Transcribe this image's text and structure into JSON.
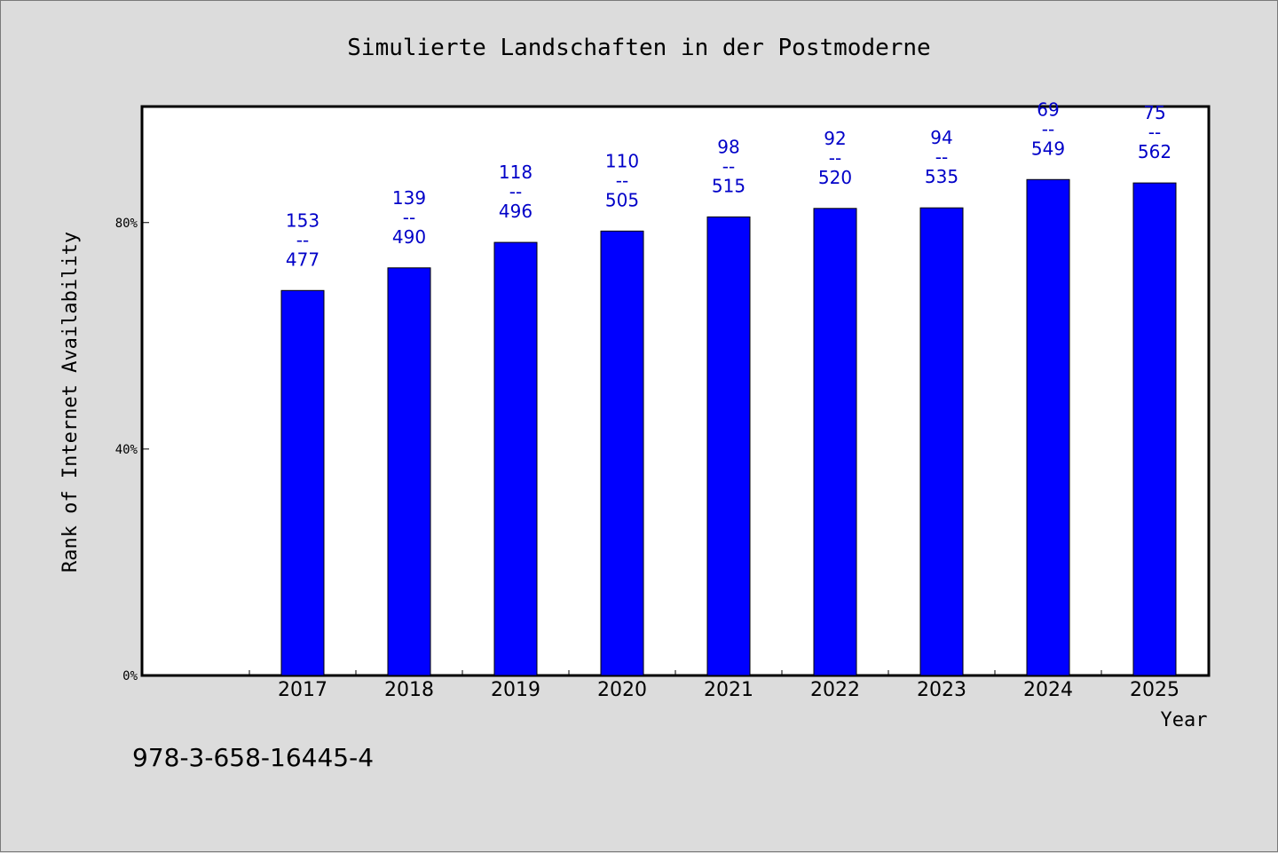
{
  "chart_data": {
    "type": "bar",
    "title": "Simulierte Landschaften in der Postmoderne",
    "xlabel": "Year",
    "ylabel": "Rank of Internet Availability",
    "categories": [
      "2017",
      "2018",
      "2019",
      "2020",
      "2021",
      "2022",
      "2023",
      "2024",
      "2025"
    ],
    "values": [
      68,
      72,
      76.5,
      78.5,
      81,
      82.5,
      82.6,
      87.6,
      87
    ],
    "value_unit": "%",
    "data_labels": [
      {
        "top": "153",
        "separator": "--",
        "bottom": "477"
      },
      {
        "top": "139",
        "separator": "--",
        "bottom": "490"
      },
      {
        "top": "118",
        "separator": "--",
        "bottom": "496"
      },
      {
        "top": "110",
        "separator": "--",
        "bottom": "505"
      },
      {
        "top": "98",
        "separator": "--",
        "bottom": "515"
      },
      {
        "top": "92",
        "separator": "--",
        "bottom": "520"
      },
      {
        "top": "94",
        "separator": "--",
        "bottom": "535"
      },
      {
        "top": "69",
        "separator": "--",
        "bottom": "549"
      },
      {
        "top": "75",
        "separator": "--",
        "bottom": "562"
      }
    ],
    "yticks": [
      0,
      40,
      80
    ],
    "ytick_labels": [
      "0%",
      "40%",
      "80%"
    ],
    "ylim": [
      0,
      100.5
    ],
    "grid": false,
    "bar_color": "#0000ff",
    "label_color": "#0000c8",
    "background_color": "#dcdcdc",
    "plot_background_color": "#ffffff"
  },
  "footer": {
    "isbn": "978-3-658-16445-4"
  }
}
